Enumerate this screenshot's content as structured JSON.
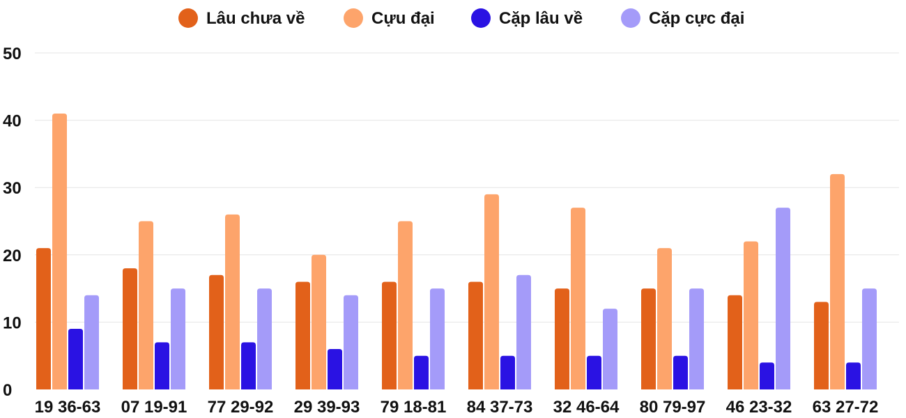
{
  "chart_data": {
    "type": "bar",
    "categories": [
      "19 36-63",
      "07 19-91",
      "77 29-92",
      "29 39-93",
      "79 18-81",
      "84 37-73",
      "32 46-64",
      "80 79-97",
      "46 23-32",
      "63 27-72"
    ],
    "series": [
      {
        "name": "Lâu chưa về",
        "color": "#e2611a",
        "values": [
          21,
          18,
          17,
          16,
          16,
          16,
          15,
          15,
          14,
          13
        ]
      },
      {
        "name": "Cựu đại",
        "color": "#fda46b",
        "values": [
          41,
          25,
          26,
          20,
          25,
          29,
          27,
          21,
          22,
          32
        ]
      },
      {
        "name": "Cặp lâu về",
        "color": "#2a12e3",
        "values": [
          9,
          7,
          7,
          6,
          5,
          5,
          5,
          5,
          4,
          4
        ]
      },
      {
        "name": "Cặp cực đại",
        "color": "#a49bf9",
        "values": [
          14,
          15,
          15,
          14,
          15,
          17,
          12,
          15,
          27,
          15
        ]
      }
    ],
    "yticks": [
      "0",
      "10",
      "20",
      "30",
      "40",
      "50"
    ],
    "ylim": [
      0,
      50
    ],
    "grid": true,
    "legend": "top-center",
    "title": "",
    "xlabel": "",
    "ylabel": ""
  }
}
